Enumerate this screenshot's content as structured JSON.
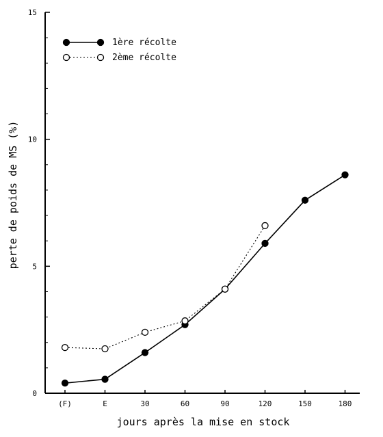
{
  "chart_data": {
    "type": "line",
    "title": "",
    "xlabel": "jours après la mise en stock",
    "ylabel": "perte de poids de MS (%)",
    "categories": [
      "(F)",
      "E",
      "30",
      "60",
      "90",
      "120",
      "150",
      "180"
    ],
    "ylim": [
      0,
      15
    ],
    "yticks": [
      0,
      5,
      10,
      15
    ],
    "grid": false,
    "legend_position": "top-left",
    "series": [
      {
        "name": "1ère récolte",
        "marker": "filled-circle",
        "line_style": "solid",
        "values": [
          0.4,
          0.55,
          1.6,
          2.7,
          4.1,
          5.9,
          7.6,
          8.6
        ]
      },
      {
        "name": "2ème récolte",
        "marker": "open-circle",
        "line_style": "dotted",
        "values": [
          1.8,
          1.75,
          2.4,
          2.85,
          4.1,
          6.6,
          null,
          null
        ]
      }
    ]
  }
}
